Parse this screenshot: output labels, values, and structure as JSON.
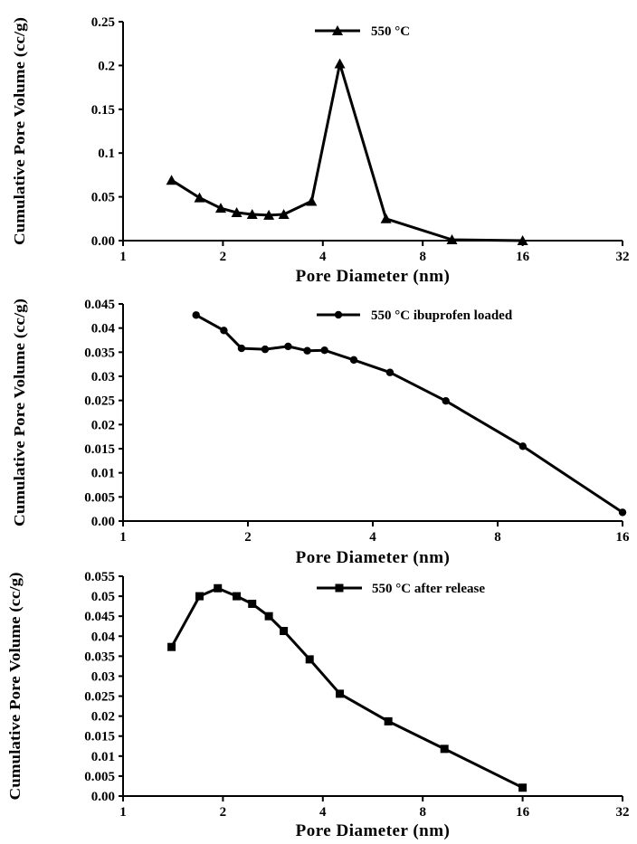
{
  "chart_data": [
    {
      "type": "line",
      "x_scale": "log2",
      "xlabel": "Pore Diameter (nm)",
      "ylabel": "Cumulative Pore Volume (cc/g)",
      "xlim": [
        1,
        32
      ],
      "ylim": [
        0,
        0.25
      ],
      "x_ticks": [
        1,
        2,
        4,
        8,
        16,
        32
      ],
      "x_tick_labels": [
        "1",
        "2",
        "4",
        "8",
        "16",
        "32"
      ],
      "y_ticks": [
        0,
        0.05,
        0.1,
        0.15,
        0.2,
        0.25
      ],
      "y_tick_labels": [
        "0.00",
        "0.05",
        "0.1",
        "0.15",
        "0.2",
        "0.25"
      ],
      "legend_position": "top-center",
      "series": [
        {
          "name": "550 °C",
          "marker": "triangle",
          "color": "#000000",
          "x": [
            1.4,
            1.7,
            1.97,
            2.2,
            2.45,
            2.75,
            3.05,
            3.7,
            4.5,
            6.2,
            9.8,
            16.0
          ],
          "y": [
            0.069,
            0.049,
            0.037,
            0.032,
            0.03,
            0.029,
            0.03,
            0.045,
            0.202,
            0.025,
            0.001,
            0.0
          ]
        }
      ]
    },
    {
      "type": "line",
      "x_scale": "log2",
      "xlabel": "Pore Diameter (nm)",
      "ylabel": "Cumulative Pore Volume (cc/g)",
      "xlim": [
        1,
        16
      ],
      "ylim": [
        0,
        0.045
      ],
      "x_ticks": [
        1,
        2,
        4,
        8,
        16
      ],
      "x_tick_labels": [
        "1",
        "2",
        "4",
        "8",
        "16"
      ],
      "y_ticks": [
        0,
        0.005,
        0.01,
        0.015,
        0.02,
        0.025,
        0.03,
        0.035,
        0.04,
        0.045
      ],
      "y_tick_labels": [
        "0.00",
        "0.005",
        "0.01",
        "0.015",
        "0.02",
        "0.025",
        "0.03",
        "0.035",
        "0.04",
        "0.045"
      ],
      "legend_position": "top-right",
      "series": [
        {
          "name": "550 °C ibuprofen loaded",
          "marker": "circle",
          "color": "#000000",
          "x": [
            1.5,
            1.75,
            1.93,
            2.2,
            2.5,
            2.78,
            3.06,
            3.6,
            4.4,
            6.0,
            9.2,
            16.0
          ],
          "y": [
            0.0427,
            0.0395,
            0.0358,
            0.0356,
            0.0362,
            0.0353,
            0.0354,
            0.0334,
            0.0308,
            0.0249,
            0.0155,
            0.0018
          ]
        }
      ]
    },
    {
      "type": "line",
      "x_scale": "log2",
      "xlabel": "Pore Diameter (nm)",
      "ylabel": "Cumulative Pore Volume (cc/g)",
      "xlim": [
        1,
        32
      ],
      "ylim": [
        0,
        0.055
      ],
      "x_ticks": [
        1,
        2,
        4,
        8,
        16,
        32
      ],
      "x_tick_labels": [
        "1",
        "2",
        "4",
        "8",
        "16",
        "32"
      ],
      "y_ticks": [
        0,
        0.005,
        0.01,
        0.015,
        0.02,
        0.025,
        0.03,
        0.035,
        0.04,
        0.045,
        0.05,
        0.055
      ],
      "y_tick_labels": [
        "0.00",
        "0.005",
        "0.01",
        "0.015",
        "0.02",
        "0.025",
        "0.03",
        "0.035",
        "0.04",
        "0.045",
        "0.05",
        "0.055"
      ],
      "legend_position": "top-right",
      "series": [
        {
          "name": "550 °C after release",
          "marker": "square",
          "color": "#000000",
          "x": [
            1.4,
            1.7,
            1.93,
            2.2,
            2.45,
            2.75,
            3.05,
            3.65,
            4.5,
            6.3,
            9.3,
            16.0
          ],
          "y": [
            0.0373,
            0.05,
            0.052,
            0.05,
            0.0481,
            0.045,
            0.0413,
            0.0342,
            0.0256,
            0.0187,
            0.0118,
            0.0021
          ]
        }
      ]
    }
  ]
}
